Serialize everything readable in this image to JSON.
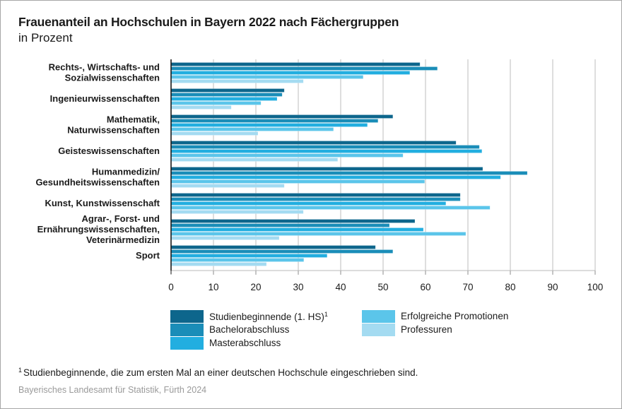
{
  "chart_data": {
    "type": "bar",
    "orientation": "horizontal",
    "title": "Frauenanteil an Hochschulen in Bayern 2022 nach Fächergruppen",
    "subtitle": "in Prozent",
    "xlabel": "",
    "ylabel": "",
    "xlim": [
      0,
      100
    ],
    "xticks": [
      0,
      10,
      20,
      30,
      40,
      50,
      60,
      70,
      80,
      90,
      100
    ],
    "grid": true,
    "legend_position": "bottom",
    "categories": [
      [
        "Rechts-, Wirtschafts- und",
        "Sozialwissenschaften"
      ],
      [
        "Ingenieurwissenschaften"
      ],
      [
        "Mathematik,",
        "Naturwissenschaften"
      ],
      [
        "Geisteswissenschaften"
      ],
      [
        "Humanmedizin/",
        "Gesundheitswissenschaften"
      ],
      [
        "Kunst, Kunstwissenschaft"
      ],
      [
        "Agrar-, Forst- und",
        "Ernährungswissenschaften,",
        "Veterinärmedizin"
      ],
      [
        "Sport"
      ]
    ],
    "series": [
      {
        "name": "Studienbeginnende (1. HS)",
        "footnote_marker": "1",
        "color": "#0d668c",
        "values": [
          58.7,
          26.7,
          52.3,
          67.2,
          73.5,
          68.2,
          57.5,
          48.2
        ]
      },
      {
        "name": "Bachelorabschluss",
        "footnote_marker": "",
        "color": "#1a8db8",
        "values": [
          62.8,
          26.2,
          48.8,
          72.7,
          84.0,
          68.2,
          51.5,
          52.3
        ]
      },
      {
        "name": "Masterabschluss",
        "footnote_marker": "",
        "color": "#22aee0",
        "values": [
          56.3,
          25.0,
          46.3,
          73.3,
          77.7,
          64.8,
          59.5,
          36.8
        ]
      },
      {
        "name": "Erfolgreiche Promotionen",
        "footnote_marker": "",
        "color": "#5bc5ea",
        "values": [
          45.3,
          21.2,
          38.3,
          54.7,
          59.8,
          75.2,
          69.5,
          31.3
        ]
      },
      {
        "name": "Professuren",
        "footnote_marker": "",
        "color": "#a4dbf1",
        "values": [
          31.2,
          14.2,
          20.5,
          39.3,
          26.7,
          31.2,
          25.5,
          22.5
        ]
      }
    ]
  },
  "footnote": {
    "marker": "1",
    "text": "Studienbeginnende, die zum ersten Mal an einer deutschen Hochschule eingeschrieben sind."
  },
  "source": "Bayerisches Landesamt für Statistik, Fürth 2024",
  "colors": {
    "gridline": "#c8c8c8",
    "axis": "#1a1a1a",
    "border": "#a6a6a6"
  }
}
